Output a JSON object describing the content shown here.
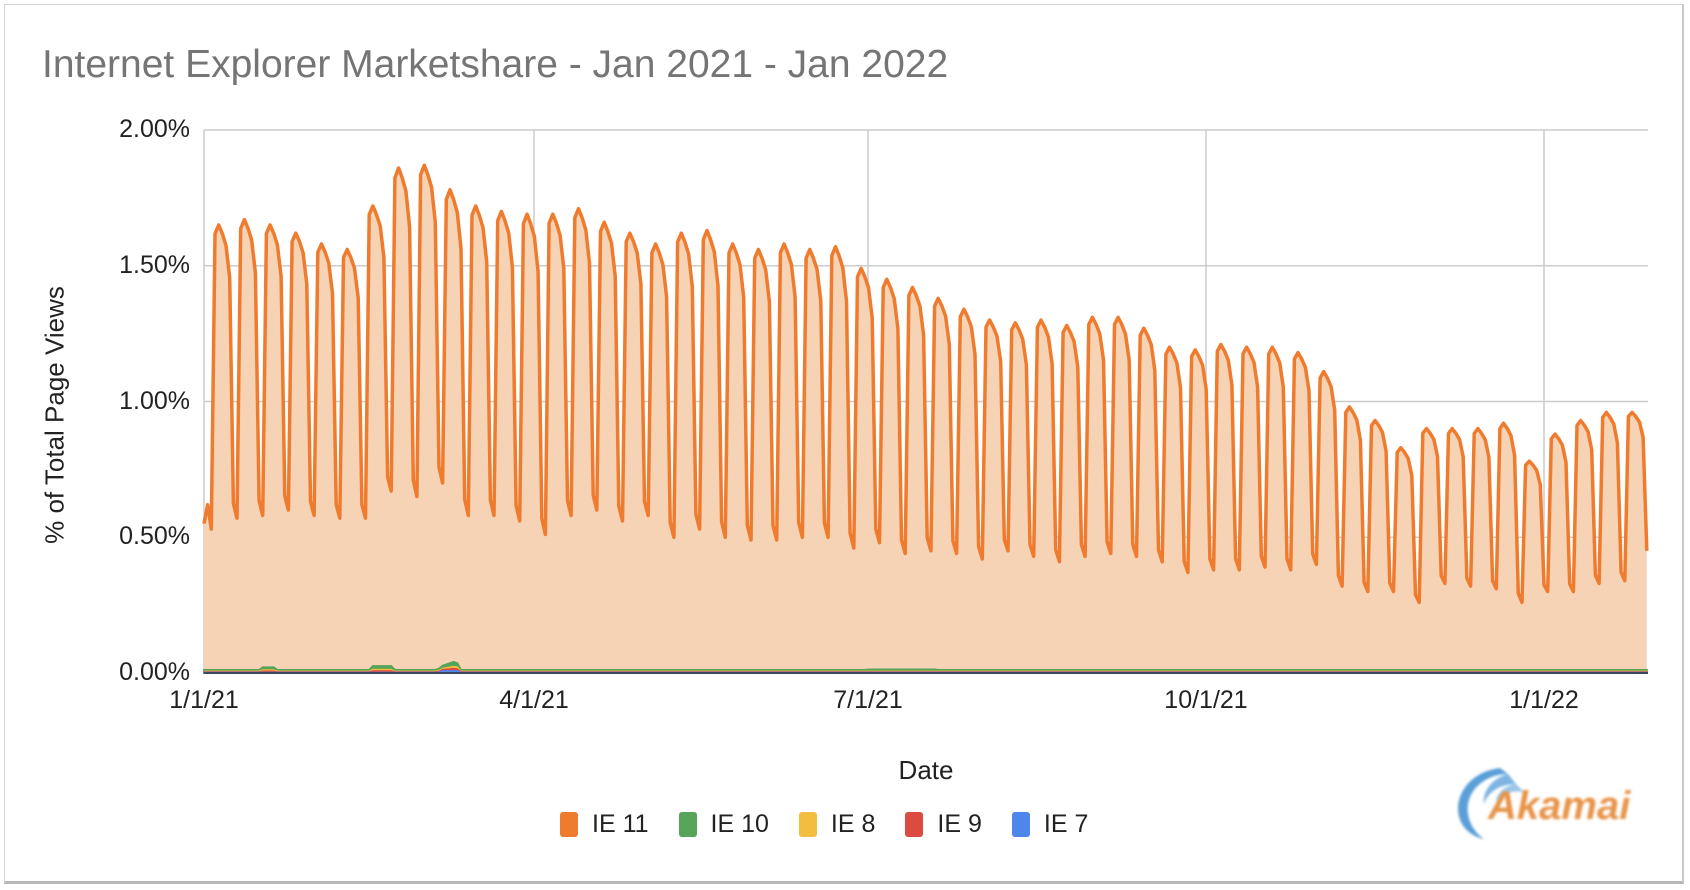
{
  "title": "Internet Explorer Marketshare - Jan 2021 - Jan 2022",
  "y_axis": {
    "title": "% of Total Page Views",
    "ticks": [
      "2.00%",
      "1.50%",
      "1.00%",
      "0.50%",
      "0.00%"
    ]
  },
  "x_axis": {
    "title": "Date",
    "ticks": [
      "1/1/21",
      "4/1/21",
      "7/1/21",
      "10/1/21",
      "1/1/22"
    ]
  },
  "legend": [
    {
      "label": "IE 11",
      "color": "#ef7b2e"
    },
    {
      "label": "IE 10",
      "color": "#55a45a"
    },
    {
      "label": "IE 8",
      "color": "#f3bd3f"
    },
    {
      "label": "IE 9",
      "color": "#db4b3f"
    },
    {
      "label": "IE 7",
      "color": "#4e86ec"
    }
  ],
  "logo": {
    "text": "Akamai"
  },
  "chart_data": {
    "type": "area",
    "title": "Internet Explorer Marketshare - Jan 2021 - Jan 2022",
    "xlabel": "Date",
    "ylabel": "% of Total Page Views",
    "ylim": [
      0,
      2.0
    ],
    "x_range": [
      "2021-01-01",
      "2022-01-29"
    ],
    "x_ticks": [
      "1/1/21",
      "4/1/21",
      "7/1/21",
      "10/1/21",
      "1/1/22"
    ],
    "y_ticks": [
      0,
      0.5,
      1.0,
      1.5,
      2.0
    ],
    "grid": true,
    "legend_position": "bottom",
    "stacked": true,
    "note": "Daily series with strong weekly seasonality (weekday peaks, weekend troughs). Values below are weekly weekday peak and weekend trough estimates for IE 11, weeks starting Monday.",
    "series": [
      {
        "name": "IE 11",
        "color": "#ef7b2e",
        "week_start": "2021-01-04",
        "weekly_peak": [
          1.65,
          1.67,
          1.65,
          1.62,
          1.58,
          1.56,
          1.72,
          1.86,
          1.87,
          1.78,
          1.72,
          1.7,
          1.69,
          1.69,
          1.71,
          1.66,
          1.62,
          1.58,
          1.62,
          1.63,
          1.58,
          1.56,
          1.58,
          1.56,
          1.57,
          1.49,
          1.45,
          1.42,
          1.38,
          1.34,
          1.3,
          1.29,
          1.3,
          1.28,
          1.31,
          1.31,
          1.27,
          1.2,
          1.19,
          1.21,
          1.2,
          1.2,
          1.18,
          1.11,
          0.98,
          0.93,
          0.83,
          0.9,
          0.9,
          0.9,
          0.92,
          0.78,
          0.88,
          0.93,
          0.96,
          0.96
        ],
        "weekly_trough": [
          0.57,
          0.58,
          0.6,
          0.58,
          0.57,
          0.57,
          0.67,
          0.65,
          0.7,
          0.58,
          0.58,
          0.56,
          0.51,
          0.58,
          0.6,
          0.56,
          0.58,
          0.5,
          0.53,
          0.5,
          0.49,
          0.49,
          0.5,
          0.5,
          0.46,
          0.48,
          0.44,
          0.45,
          0.44,
          0.42,
          0.45,
          0.43,
          0.41,
          0.43,
          0.44,
          0.43,
          0.41,
          0.37,
          0.38,
          0.38,
          0.39,
          0.38,
          0.4,
          0.32,
          0.3,
          0.3,
          0.26,
          0.33,
          0.32,
          0.31,
          0.26,
          0.3,
          0.3,
          0.33,
          0.34,
          0.45
        ],
        "start_values": [
          0.55,
          0.62,
          0.53
        ],
        "end_value": 0.45
      },
      {
        "name": "IE 10",
        "color": "#55a45a",
        "typical": 0.01,
        "max": 0.06,
        "max_date": "2021-03-10"
      },
      {
        "name": "IE 8",
        "color": "#f3bd3f",
        "typical": 0.005,
        "max": 0.03
      },
      {
        "name": "IE 9",
        "color": "#db4b3f",
        "typical": 0.003,
        "max": 0.02
      },
      {
        "name": "IE 7",
        "color": "#4e86ec",
        "typical": 0.001,
        "max": 0.01
      }
    ]
  }
}
